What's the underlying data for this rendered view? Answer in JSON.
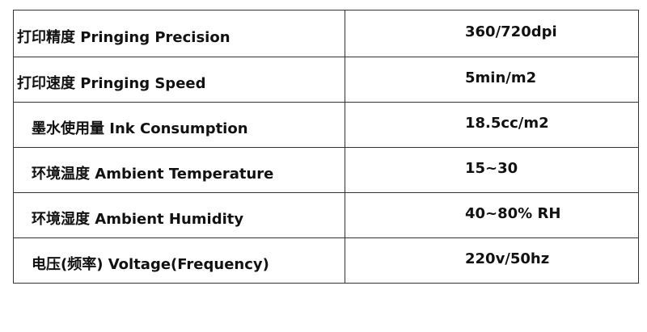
{
  "table": {
    "rows": [
      [
        "打印精度 Pringing Precision",
        "360/720dpi"
      ],
      [
        "打印速度 Pringing Speed",
        "5min/m2"
      ],
      [
        "墨水使用量 Ink Consumption",
        "18.5cc/m2"
      ],
      [
        "环境温度 Ambient Temperature",
        "15~30"
      ],
      [
        "环境湿度 Ambient Humidity",
        "40~80% RH"
      ],
      [
        "电压(频率) Voltage(Frequency)",
        "220v/50hz"
      ]
    ]
  }
}
